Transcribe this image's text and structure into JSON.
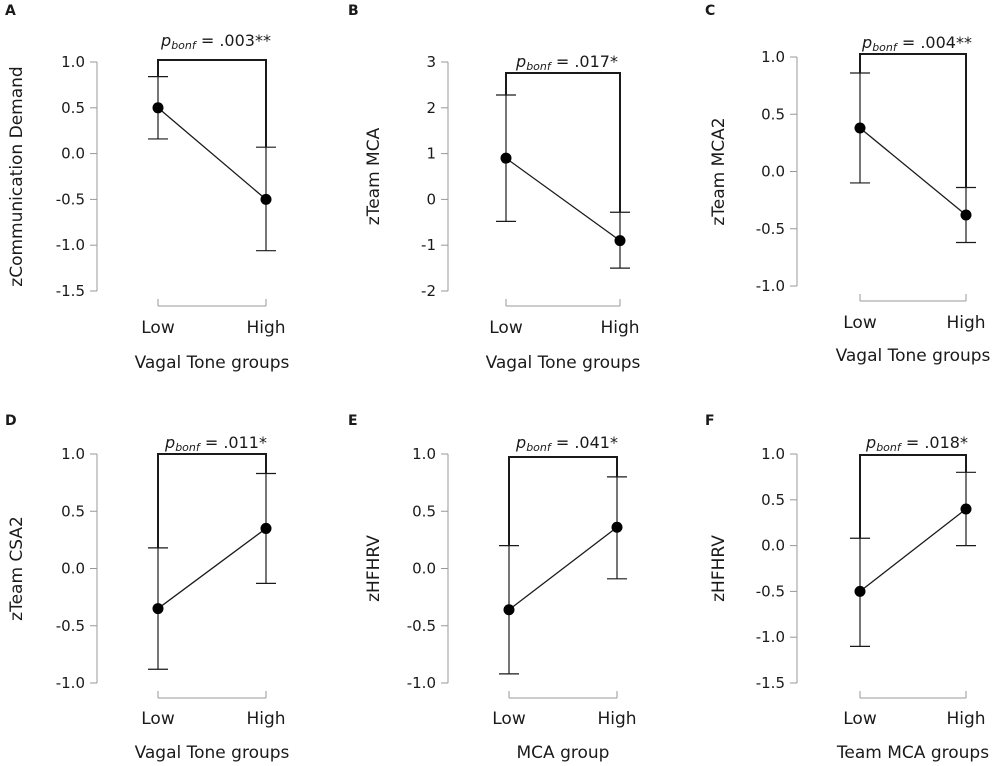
{
  "chart_data": [
    {
      "panel": "A",
      "type": "line",
      "ylabel": "zCommunication Demand",
      "xlabel": "Vagal Tone groups",
      "categories": [
        "Low",
        "High"
      ],
      "means": [
        0.5,
        -0.5
      ],
      "ci_lower": [
        0.16,
        -1.06
      ],
      "ci_upper": [
        0.84,
        0.07
      ],
      "ylim": [
        -1.5,
        1.0
      ],
      "yticks": [
        1.0,
        0.5,
        0.0,
        -0.5,
        -1.0,
        -1.5
      ],
      "ytick_labels": [
        "1.0",
        "0.5",
        "0.0",
        "-0.5",
        "-1.0",
        "-1.5"
      ],
      "annotation_prefix": "p",
      "annotation_sub": "bonf",
      "annotation_value": " = .003**"
    },
    {
      "panel": "B",
      "type": "line",
      "ylabel": "zTeam MCA",
      "xlabel": "Vagal Tone groups",
      "categories": [
        "Low",
        "High"
      ],
      "means": [
        0.9,
        -0.9
      ],
      "ci_lower": [
        -0.48,
        -1.5
      ],
      "ci_upper": [
        2.28,
        -0.28
      ],
      "ylim": [
        -2,
        3
      ],
      "yticks": [
        3,
        2,
        1,
        0,
        -1,
        -2
      ],
      "ytick_labels": [
        "3",
        "2",
        "1",
        "0",
        "-1",
        "-2"
      ],
      "annotation_prefix": "p",
      "annotation_sub": "bonf",
      "annotation_value": " = .017*"
    },
    {
      "panel": "C",
      "type": "line",
      "ylabel": "zTeam MCA2",
      "xlabel": "Vagal Tone groups",
      "categories": [
        "Low",
        "High"
      ],
      "means": [
        0.38,
        -0.38
      ],
      "ci_lower": [
        -0.1,
        -0.62
      ],
      "ci_upper": [
        0.86,
        -0.14
      ],
      "ylim": [
        -1.0,
        1.0
      ],
      "yticks": [
        1.0,
        0.5,
        0.0,
        -0.5,
        -1.0
      ],
      "ytick_labels": [
        "1.0",
        "0.5",
        "0.0",
        "-0.5",
        "-1.0"
      ],
      "annotation_prefix": "p",
      "annotation_sub": "bonf",
      "annotation_value": " = .004**"
    },
    {
      "panel": "D",
      "type": "line",
      "ylabel": "zTeam CSA2",
      "xlabel": "Vagal Tone groups",
      "categories": [
        "Low",
        "High"
      ],
      "means": [
        -0.35,
        0.35
      ],
      "ci_lower": [
        -0.88,
        -0.13
      ],
      "ci_upper": [
        0.18,
        0.83
      ],
      "ylim": [
        -1.0,
        1.0
      ],
      "yticks": [
        1.0,
        0.5,
        0.0,
        -0.5,
        -1.0
      ],
      "ytick_labels": [
        "1.0",
        "0.5",
        "0.0",
        "-0.5",
        "-1.0"
      ],
      "annotation_prefix": "p",
      "annotation_sub": "bonf",
      "annotation_value": " = .011*"
    },
    {
      "panel": "E",
      "type": "line",
      "ylabel": "zHFHRV",
      "xlabel": "MCA group",
      "categories": [
        "Low",
        "High"
      ],
      "means": [
        -0.36,
        0.36
      ],
      "ci_lower": [
        -0.92,
        -0.09
      ],
      "ci_upper": [
        0.2,
        0.8
      ],
      "ylim": [
        -1.0,
        1.0
      ],
      "yticks": [
        1.0,
        0.5,
        0.0,
        -0.5,
        -1.0
      ],
      "ytick_labels": [
        "1.0",
        "0.5",
        "0.0",
        "-0.5",
        "-1.0"
      ],
      "annotation_prefix": "p",
      "annotation_sub": "bonf",
      "annotation_value": " = .041*"
    },
    {
      "panel": "F",
      "type": "line",
      "ylabel": "zHFHRV",
      "xlabel": "Team MCA groups",
      "categories": [
        "Low",
        "High"
      ],
      "means": [
        -0.5,
        0.4
      ],
      "ci_lower": [
        -1.1,
        0.0
      ],
      "ci_upper": [
        0.08,
        0.8
      ],
      "ylim": [
        -1.5,
        1.0
      ],
      "yticks": [
        1.0,
        0.5,
        0.0,
        -0.5,
        -1.0,
        -1.5
      ],
      "ytick_labels": [
        "1.0",
        "0.5",
        "0.0",
        "-0.5",
        "-1.0",
        "-1.5"
      ],
      "annotation_prefix": "p",
      "annotation_sub": "bonf",
      "annotation_value": " = .018*"
    }
  ]
}
